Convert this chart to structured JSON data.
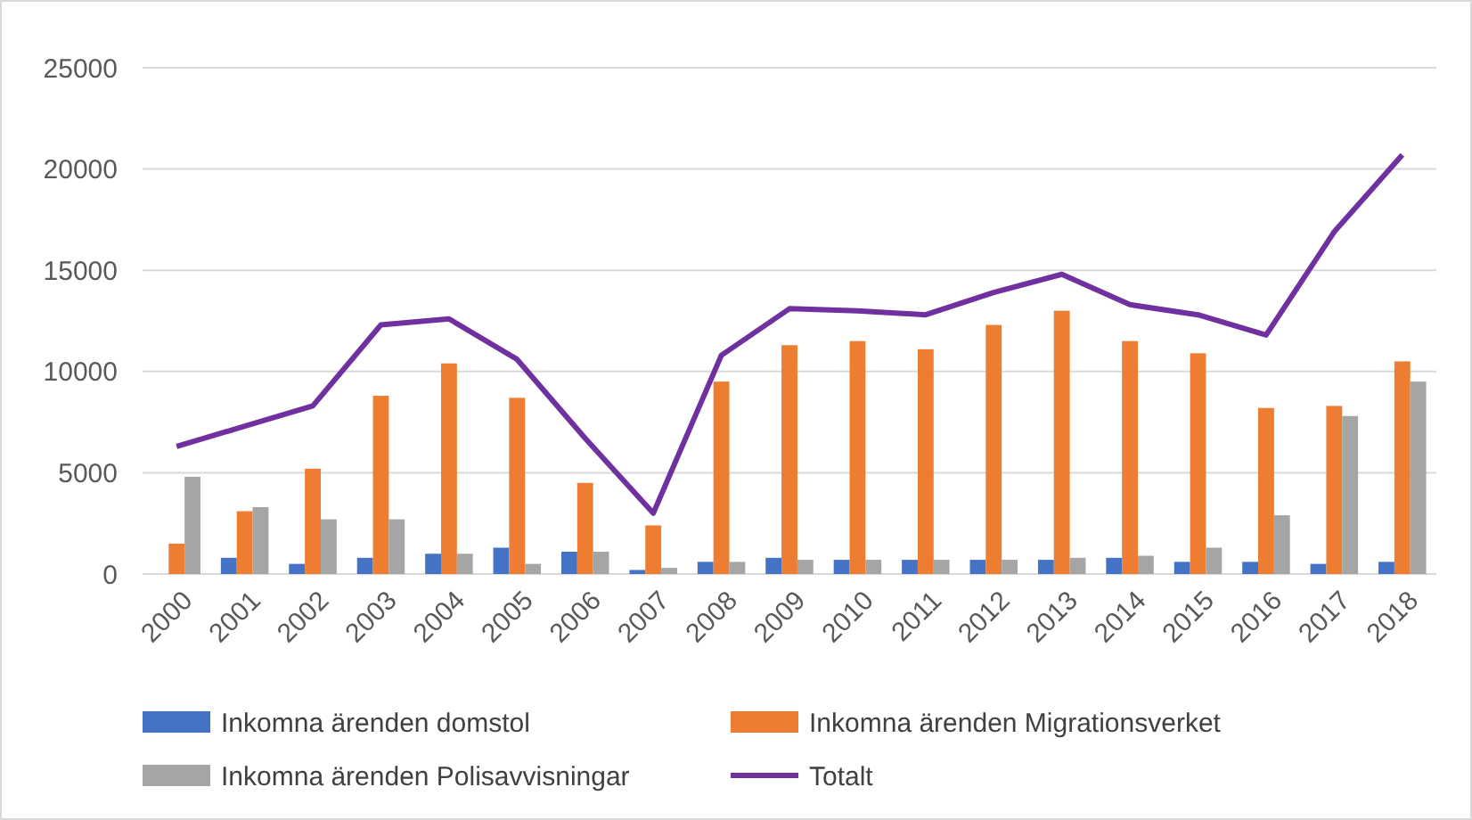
{
  "chart_data": {
    "type": "bar",
    "categories": [
      "2000",
      "2001",
      "2002",
      "2003",
      "2004",
      "2005",
      "2006",
      "2007",
      "2008",
      "2009",
      "2010",
      "2011",
      "2012",
      "2013",
      "2014",
      "2015",
      "2016",
      "2017",
      "2018"
    ],
    "series": [
      {
        "name": "Inkomna ärenden domstol",
        "color": "#4472c4",
        "values": [
          0,
          800,
          500,
          800,
          1000,
          1300,
          1100,
          200,
          600,
          800,
          700,
          700,
          700,
          700,
          800,
          600,
          600,
          500,
          600
        ]
      },
      {
        "name": "Inkomna ärenden  Migrationsverket",
        "color": "#ed7d31",
        "values": [
          1500,
          3100,
          5200,
          8800,
          10400,
          8700,
          4500,
          2400,
          9500,
          11300,
          11500,
          11100,
          12300,
          13000,
          11500,
          10900,
          8200,
          8300,
          10500
        ]
      },
      {
        "name": "Inkomna ärenden  Polisavvisningar",
        "color": "#a5a5a5",
        "values": [
          4800,
          3300,
          2700,
          2700,
          1000,
          500,
          1100,
          300,
          600,
          700,
          700,
          700,
          700,
          800,
          900,
          1300,
          2900,
          7800,
          9500
        ]
      },
      {
        "name": "Totalt",
        "type": "line",
        "color": "#7030a0",
        "values": [
          6300,
          7300,
          8300,
          12300,
          12600,
          10600,
          6700,
          3000,
          10800,
          13100,
          13000,
          12800,
          13900,
          14800,
          13300,
          12800,
          11800,
          16900,
          20700
        ]
      }
    ],
    "ylim": [
      0,
      25000
    ],
    "yticks": [
      0,
      5000,
      10000,
      15000,
      20000,
      25000
    ],
    "grid": "y",
    "legend": "bottom"
  }
}
